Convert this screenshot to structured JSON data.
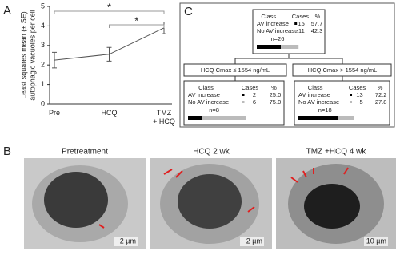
{
  "panel_labels": [
    "A",
    "C",
    "B"
  ],
  "chart_data": {
    "type": "line",
    "y_label": [
      "Least squares mean (± SE)",
      "autophagic vacuoles per cell"
    ],
    "categories": [
      "Pre",
      "HCQ",
      "TMZ\n+ HCQ"
    ],
    "series": [
      {
        "color": "#555555",
        "values": [
          2.25,
          2.55,
          3.9
        ],
        "errors": [
          0.4,
          0.35,
          0.3
        ]
      }
    ],
    "ylim": [
      0,
      5
    ],
    "yticks": [
      0,
      1,
      2,
      3,
      4,
      5
    ],
    "annotations": [
      "*",
      "*"
    ]
  },
  "tree": {
    "header": [
      "Class",
      "Cases",
      "%"
    ],
    "nodes": [
      {
        "rows": [
          [
            "AV increase",
            "15",
            "57.7"
          ],
          [
            "No AV increase",
            "11",
            "42.3"
          ]
        ],
        "n": "n=26"
      },
      {
        "rows": [
          [
            "AV increase",
            "2",
            "25.0"
          ],
          [
            "No AV increase",
            "6",
            "75.0"
          ]
        ],
        "n": "n=8"
      },
      {
        "rows": [
          [
            "AV increase",
            "13",
            "72.2"
          ],
          [
            "No AV increase",
            "5",
            "27.8"
          ]
        ],
        "n": "n=18"
      }
    ],
    "splits": [
      "HCQ Cmax ≤ 1554 ng/mL",
      "HCQ Cmax > 1554 ng/mL"
    ]
  },
  "micrographs": [
    {
      "title": "Pretreatment",
      "scale": "2 µm"
    },
    {
      "title": "HCQ 2 wk",
      "scale": "2 µm"
    },
    {
      "title": "TMZ +HCQ 4 wk",
      "scale": "10 µm"
    }
  ]
}
